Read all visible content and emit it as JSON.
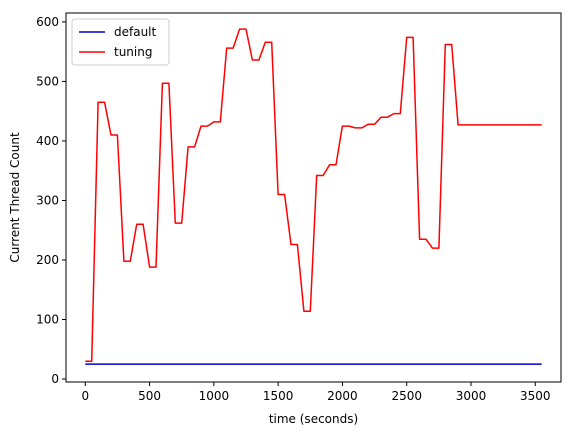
{
  "chart_data": {
    "type": "line",
    "xlabel": "time (seconds)",
    "ylabel": "Current Thread Count",
    "xlim": [
      -150,
      3700
    ],
    "ylim": [
      -5,
      615
    ],
    "xticks": [
      0,
      500,
      1000,
      1500,
      2000,
      2500,
      3000,
      3500
    ],
    "yticks": [
      0,
      100,
      200,
      300,
      400,
      500,
      600
    ],
    "grid": false,
    "legend_position": "top-left",
    "series": [
      {
        "name": "default",
        "color": "#0000cc",
        "x": [
          0,
          3550
        ],
        "y": [
          25,
          25
        ]
      },
      {
        "name": "tuning",
        "color": "#ff0000",
        "x": [
          0,
          50,
          100,
          150,
          200,
          250,
          300,
          350,
          400,
          450,
          500,
          550,
          600,
          650,
          700,
          750,
          800,
          850,
          900,
          950,
          1000,
          1050,
          1100,
          1150,
          1200,
          1250,
          1300,
          1350,
          1400,
          1450,
          1500,
          1550,
          1600,
          1650,
          1700,
          1750,
          1800,
          1850,
          1900,
          1950,
          2000,
          2050,
          2100,
          2150,
          2200,
          2250,
          2300,
          2350,
          2400,
          2450,
          2500,
          2550,
          2600,
          2650,
          2700,
          2750,
          2800,
          2850,
          2900,
          2950,
          3000,
          3050,
          3100,
          3150,
          3200,
          3250,
          3300,
          3350,
          3400,
          3450,
          3500,
          3550
        ],
        "y": [
          30,
          30,
          465,
          465,
          410,
          410,
          198,
          198,
          260,
          260,
          188,
          188,
          497,
          497,
          262,
          262,
          390,
          390,
          425,
          425,
          432,
          432,
          556,
          556,
          588,
          588,
          536,
          536,
          566,
          566,
          310,
          310,
          226,
          226,
          114,
          114,
          342,
          342,
          360,
          360,
          425,
          425,
          422,
          422,
          428,
          428,
          440,
          440,
          446,
          446,
          574,
          574,
          235,
          235,
          220,
          220,
          562,
          562,
          427,
          427,
          427,
          427,
          427,
          427,
          427,
          427,
          427,
          427,
          427,
          427,
          427,
          427
        ]
      }
    ]
  }
}
